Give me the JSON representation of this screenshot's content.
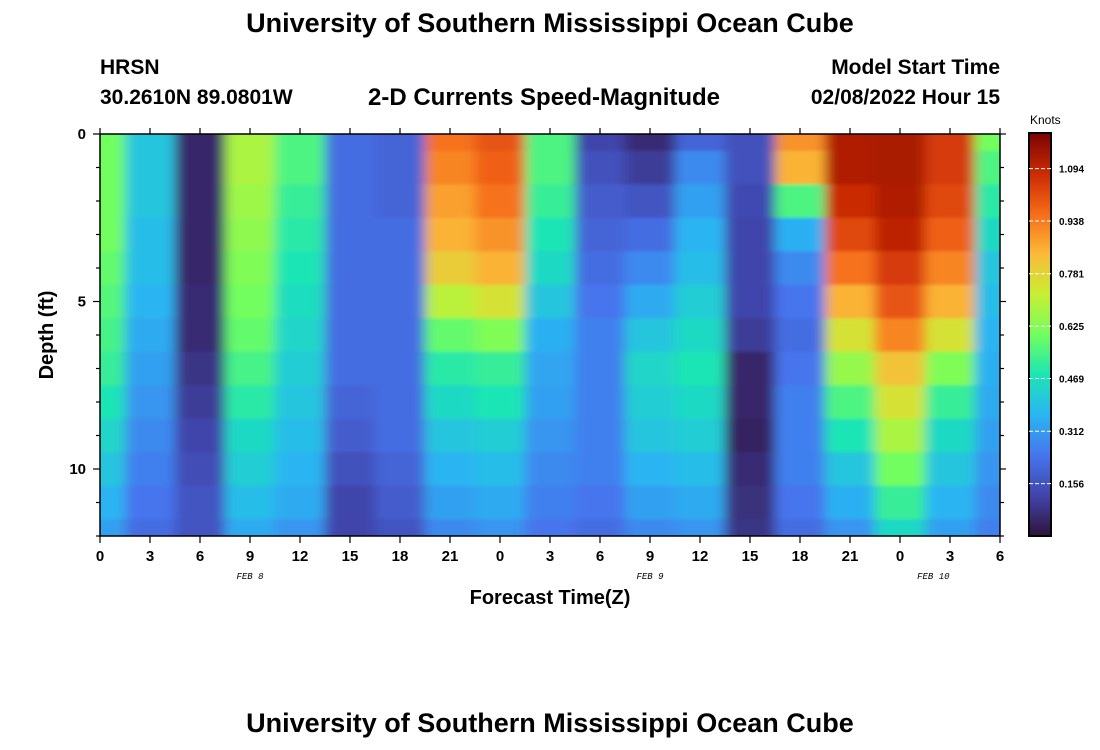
{
  "header": {
    "title": "University of Southern Mississippi Ocean Cube",
    "station": "HRSN",
    "coords": "30.2610N  89.0801W",
    "subtitle": "2-D Currents Speed-Magnitude",
    "start_label": "Model Start Time",
    "start_value": "02/08/2022 Hour 15"
  },
  "footer": {
    "title": "University of Southern Mississippi Ocean Cube"
  },
  "chart_data": {
    "type": "heatmap",
    "xlabel": "Forecast Time(Z)",
    "ylabel": "Depth (ft)",
    "x_ticks": [
      "0",
      "3",
      "6",
      "9",
      "12",
      "15",
      "18",
      "21",
      "0",
      "3",
      "6",
      "9",
      "12",
      "15",
      "18",
      "21",
      "0",
      "3",
      "6"
    ],
    "y_ticks": [
      "0",
      "5",
      "10"
    ],
    "date_labels": [
      "FEB 8",
      "FEB 9",
      "FEB 10"
    ],
    "x_range_hours": [
      0,
      54
    ],
    "y_range_ft": [
      0,
      12
    ],
    "colorbar": {
      "label": "Knots",
      "ticks": [
        "1.094",
        "0.938",
        "0.781",
        "0.625",
        "0.469",
        "0.312",
        "0.156"
      ],
      "tick_values": [
        1.094,
        0.938,
        0.781,
        0.625,
        0.469,
        0.312,
        0.156
      ],
      "range": [
        0,
        1.2
      ]
    },
    "depths_ft": [
      0,
      1,
      2,
      3,
      4,
      5,
      6,
      7,
      8,
      9,
      10,
      11,
      12
    ],
    "hours": [
      0,
      3,
      6,
      9,
      12,
      15,
      18,
      21,
      24,
      27,
      30,
      33,
      36,
      39,
      42,
      45,
      48,
      51,
      54
    ],
    "speed_knots": [
      [
        0.6,
        0.4,
        0.05,
        0.68,
        0.55,
        0.22,
        0.2,
        0.95,
        1.0,
        0.55,
        0.12,
        0.06,
        0.2,
        0.15,
        0.9,
        1.12,
        1.13,
        1.05,
        0.6
      ],
      [
        0.6,
        0.4,
        0.05,
        0.68,
        0.55,
        0.22,
        0.2,
        0.92,
        0.98,
        0.55,
        0.15,
        0.1,
        0.28,
        0.15,
        0.85,
        1.12,
        1.13,
        1.05,
        0.55
      ],
      [
        0.6,
        0.4,
        0.05,
        0.66,
        0.52,
        0.22,
        0.2,
        0.88,
        0.95,
        0.52,
        0.18,
        0.16,
        0.32,
        0.13,
        0.55,
        1.08,
        1.12,
        1.02,
        0.5
      ],
      [
        0.6,
        0.38,
        0.05,
        0.64,
        0.5,
        0.22,
        0.22,
        0.85,
        0.9,
        0.48,
        0.2,
        0.22,
        0.36,
        0.12,
        0.35,
        1.02,
        1.1,
        0.98,
        0.45
      ],
      [
        0.58,
        0.38,
        0.05,
        0.62,
        0.48,
        0.22,
        0.22,
        0.8,
        0.85,
        0.45,
        0.22,
        0.28,
        0.38,
        0.12,
        0.28,
        0.95,
        1.05,
        0.92,
        0.4
      ],
      [
        0.56,
        0.36,
        0.06,
        0.6,
        0.46,
        0.22,
        0.22,
        0.7,
        0.75,
        0.4,
        0.24,
        0.34,
        0.42,
        0.12,
        0.24,
        0.85,
        1.0,
        0.85,
        0.38
      ],
      [
        0.54,
        0.34,
        0.06,
        0.58,
        0.44,
        0.22,
        0.22,
        0.58,
        0.62,
        0.35,
        0.26,
        0.4,
        0.45,
        0.1,
        0.22,
        0.75,
        0.92,
        0.75,
        0.36
      ],
      [
        0.52,
        0.32,
        0.08,
        0.54,
        0.42,
        0.22,
        0.22,
        0.5,
        0.52,
        0.33,
        0.26,
        0.44,
        0.48,
        0.05,
        0.24,
        0.65,
        0.82,
        0.62,
        0.35
      ],
      [
        0.48,
        0.3,
        0.1,
        0.5,
        0.4,
        0.2,
        0.22,
        0.45,
        0.48,
        0.32,
        0.26,
        0.42,
        0.45,
        0.05,
        0.26,
        0.55,
        0.75,
        0.52,
        0.34
      ],
      [
        0.44,
        0.28,
        0.12,
        0.45,
        0.38,
        0.18,
        0.22,
        0.4,
        0.42,
        0.3,
        0.26,
        0.4,
        0.42,
        0.04,
        0.26,
        0.48,
        0.68,
        0.45,
        0.32
      ],
      [
        0.4,
        0.26,
        0.14,
        0.42,
        0.36,
        0.15,
        0.2,
        0.36,
        0.38,
        0.28,
        0.26,
        0.36,
        0.38,
        0.06,
        0.26,
        0.4,
        0.6,
        0.4,
        0.3
      ],
      [
        0.36,
        0.24,
        0.16,
        0.38,
        0.34,
        0.12,
        0.18,
        0.32,
        0.34,
        0.26,
        0.24,
        0.32,
        0.34,
        0.07,
        0.24,
        0.35,
        0.52,
        0.36,
        0.28
      ],
      [
        0.32,
        0.22,
        0.16,
        0.34,
        0.3,
        0.12,
        0.16,
        0.28,
        0.3,
        0.24,
        0.22,
        0.28,
        0.3,
        0.08,
        0.22,
        0.3,
        0.45,
        0.32,
        0.26
      ]
    ],
    "grid": false,
    "legend": "right colorbar"
  }
}
